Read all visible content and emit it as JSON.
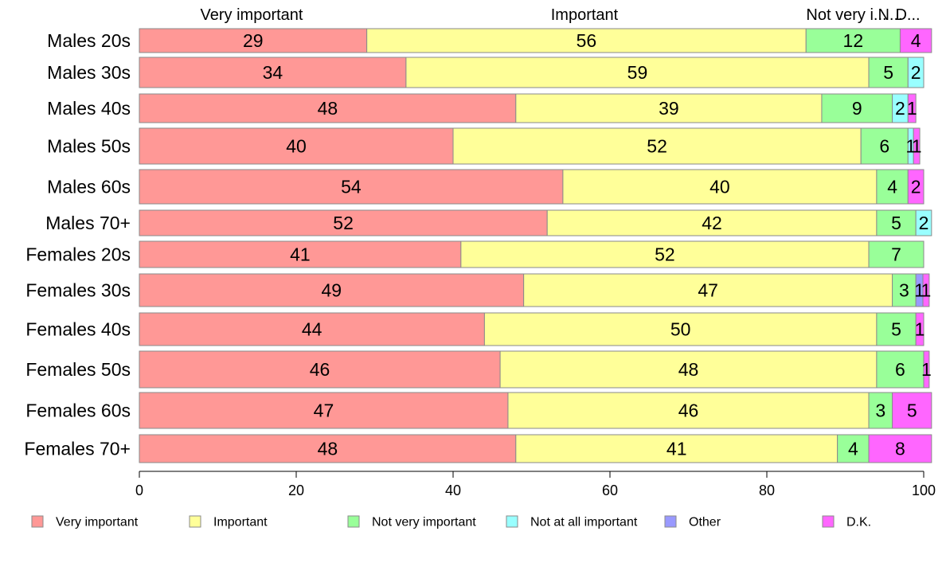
{
  "chart_data": {
    "type": "bar",
    "orientation": "horizontal",
    "stacked": true,
    "xlim": [
      0,
      100
    ],
    "x_ticks": [
      "0",
      "20",
      "40",
      "60",
      "80",
      "100"
    ],
    "top_labels": [
      "Very important",
      "Important",
      "Not very i...",
      "N...",
      "D..."
    ],
    "categories": [
      "Males 20s",
      "Males 30s",
      "Males 40s",
      "Males 50s",
      "Males 60s",
      "Males 70+",
      "Females 20s",
      "Females 30s",
      "Females 40s",
      "Females 50s",
      "Females 60s",
      "Females 70+"
    ],
    "series": [
      {
        "name": "Very important",
        "color": "#ff9896",
        "values": [
          29,
          34,
          48,
          40,
          54,
          52,
          41,
          49,
          44,
          46,
          47,
          48
        ]
      },
      {
        "name": "Important",
        "color": "#ffff99",
        "values": [
          56,
          59,
          39,
          52,
          40,
          42,
          52,
          47,
          50,
          48,
          46,
          41
        ]
      },
      {
        "name": "Not very important",
        "color": "#99ff99",
        "values": [
          12,
          5,
          9,
          6,
          4,
          5,
          7,
          3,
          5,
          6,
          3,
          4
        ]
      },
      {
        "name": "Not at all important",
        "color": "#99ffff",
        "values": [
          0,
          2,
          2,
          0.7,
          0,
          2,
          0,
          0,
          0,
          0,
          0,
          0
        ]
      },
      {
        "name": "Other",
        "color": "#9999ff",
        "values": [
          0,
          0,
          0,
          0,
          0,
          0,
          0,
          0.9,
          0,
          0,
          0,
          0
        ]
      },
      {
        "name": "D.K.",
        "color": "#ff66ff",
        "values": [
          4,
          0,
          1,
          0.8,
          2,
          0,
          0,
          0.8,
          1,
          0.7,
          5,
          8
        ]
      }
    ],
    "data_labels": [
      [
        "29",
        "56",
        "12",
        "",
        "",
        "4"
      ],
      [
        "34",
        "59",
        "5",
        "2",
        "",
        ""
      ],
      [
        "48",
        "39",
        "9",
        "2",
        "",
        "1"
      ],
      [
        "40",
        "52",
        "6",
        "1",
        "",
        "1"
      ],
      [
        "54",
        "40",
        "4",
        "",
        "",
        "2"
      ],
      [
        "52",
        "42",
        "5",
        "2",
        "",
        ""
      ],
      [
        "41",
        "52",
        "7",
        "",
        "",
        ""
      ],
      [
        "49",
        "47",
        "3",
        "",
        "1",
        "1"
      ],
      [
        "44",
        "50",
        "5",
        "",
        "",
        "1"
      ],
      [
        "46",
        "48",
        "6",
        "",
        "",
        "1"
      ],
      [
        "47",
        "46",
        "3",
        "",
        "",
        "5"
      ],
      [
        "48",
        "41",
        "4",
        "",
        "",
        "8"
      ]
    ],
    "legend_position": "bottom",
    "grid": false
  }
}
